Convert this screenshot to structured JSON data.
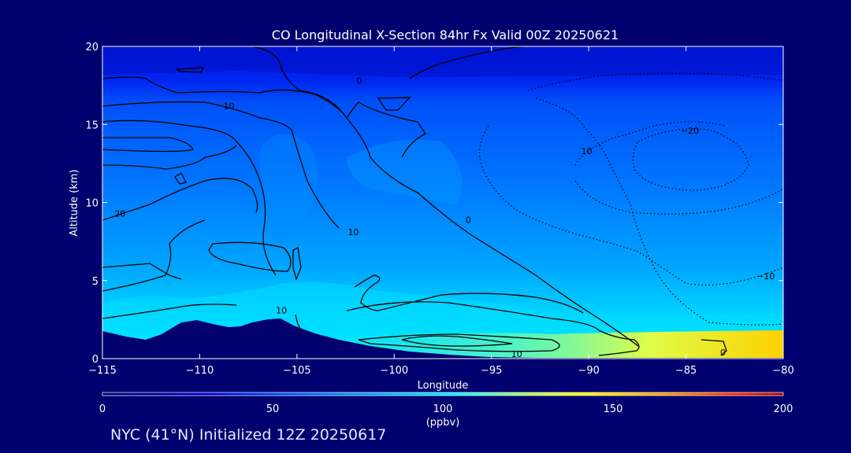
{
  "chart_data": {
    "type": "heatmap",
    "title": "CO Longitudinal X-Section 84hr  Fx Valid 00Z 20250621",
    "xlabel": "Longitude",
    "ylabel": "Altitude (km)",
    "xlim": [
      -115,
      -80
    ],
    "ylim": [
      0,
      20
    ],
    "x_ticks": [
      -115,
      -110,
      -105,
      -100,
      -95,
      -90,
      -85,
      -80
    ],
    "x_tick_labels": [
      "−115",
      "−110",
      "−105",
      "−100",
      "−95",
      "−90",
      "−85",
      "−80"
    ],
    "y_ticks": [
      0,
      5,
      10,
      15,
      20
    ],
    "y_tick_labels": [
      "0",
      "5",
      "10",
      "15",
      "20"
    ],
    "colorbar": {
      "min": 0,
      "max": 200,
      "ticks": [
        0,
        50,
        100,
        150,
        200
      ],
      "tick_labels": [
        "0",
        "50",
        "100",
        "150",
        "200"
      ],
      "units": "(ppbv)",
      "colors": [
        "#00006e",
        "#0000c8",
        "#0055ff",
        "#00aaff",
        "#00e6ff",
        "#a0ff60",
        "#ffff00",
        "#ffaa00",
        "#ff3300",
        "#c80000"
      ]
    },
    "contour_labels": [
      {
        "text": "0",
        "lon": -101.8,
        "alt": 17.8
      },
      {
        "text": "10",
        "lon": -108.5,
        "alt": 16.2
      },
      {
        "text": "10",
        "lon": -90.1,
        "alt": 13.3
      },
      {
        "text": "−20",
        "lon": -84.8,
        "alt": 14.6
      },
      {
        "text": "20",
        "lon": -114.1,
        "alt": 9.3
      },
      {
        "text": "10",
        "lon": -102.1,
        "alt": 8.1
      },
      {
        "text": "0",
        "lon": -96.2,
        "alt": 8.9
      },
      {
        "text": "−10",
        "lon": -80.9,
        "alt": 5.3
      },
      {
        "text": "10",
        "lon": -105.8,
        "alt": 3.1
      },
      {
        "text": "10",
        "lon": -93.7,
        "alt": 0.3
      },
      {
        "text": "0",
        "lon": -83.1,
        "alt": 0.4
      }
    ]
  },
  "footer": "NYC (41°N) Initialized 12Z 20250617"
}
